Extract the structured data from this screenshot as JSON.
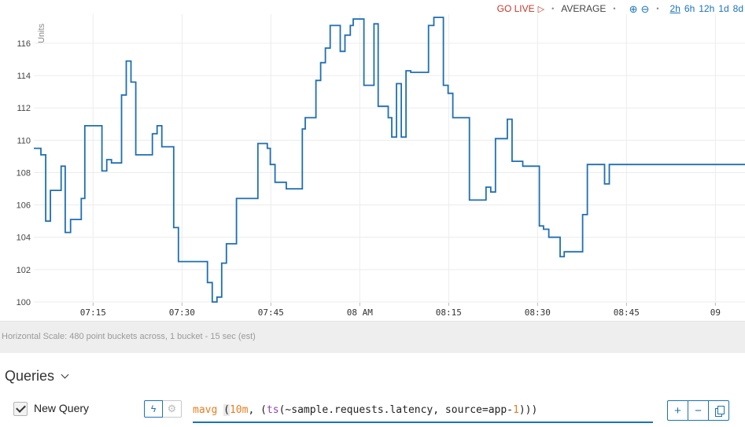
{
  "toolbar": {
    "go_live": "GO LIVE",
    "dot": "•",
    "average": "AVERAGE",
    "zoom_in_icon": "zoom-in-icon",
    "zoom_out_icon": "zoom-out-icon",
    "ranges": [
      "2h",
      "6h",
      "12h",
      "1d",
      "8d"
    ],
    "active_range": "2h"
  },
  "horizontal_scale": "Horizontal Scale: 480 point buckets across, 1 bucket - 15 sec (est)",
  "queries": {
    "title": "Queries",
    "items": [
      {
        "checked": true,
        "name": "New Query",
        "tokens": {
          "fn": "mavg",
          "open": "(",
          "num": "10m",
          "comma1": ", (",
          "ts": "ts",
          "args": "(~sample.requests.latency, source=app-",
          "one": "1",
          "close": ")))"
        }
      }
    ]
  },
  "colors": {
    "line": "#1f6fb2",
    "accent": "#1a73b8",
    "live": "#c0392b"
  },
  "chart_data": {
    "type": "line",
    "ylabel": "Units",
    "ylim": [
      99.95,
      117.8
    ],
    "yticks": [
      100,
      102,
      104,
      106,
      108,
      110,
      112,
      114,
      116
    ],
    "xlim_min": [
      425,
      545
    ],
    "xticks": [
      {
        "label": "07:15",
        "min": 435
      },
      {
        "label": "07:30",
        "min": 450
      },
      {
        "label": "07:45",
        "min": 465
      },
      {
        "label": "08 AM",
        "min": 480
      },
      {
        "label": "08:15",
        "min": 495
      },
      {
        "label": "08:30",
        "min": 510
      },
      {
        "label": "08:45",
        "min": 525
      },
      {
        "label": "09",
        "min": 540
      }
    ],
    "series": [
      {
        "step": true,
        "points": [
          [
            425.0,
            109.5
          ],
          [
            426.2,
            109.1
          ],
          [
            427.0,
            105.0
          ],
          [
            427.8,
            106.9
          ],
          [
            429.6,
            108.4
          ],
          [
            430.3,
            104.3
          ],
          [
            431.2,
            105.1
          ],
          [
            433.0,
            106.4
          ],
          [
            433.6,
            110.9
          ],
          [
            436.5,
            108.1
          ],
          [
            437.3,
            108.8
          ],
          [
            438.1,
            108.6
          ],
          [
            439.8,
            112.8
          ],
          [
            440.6,
            114.9
          ],
          [
            441.4,
            113.6
          ],
          [
            442.2,
            109.1
          ],
          [
            445.0,
            110.4
          ],
          [
            445.8,
            110.9
          ],
          [
            446.6,
            109.6
          ],
          [
            448.6,
            104.6
          ],
          [
            449.4,
            102.5
          ],
          [
            454.3,
            101.2
          ],
          [
            455.1,
            100.0
          ],
          [
            455.9,
            100.3
          ],
          [
            456.7,
            102.4
          ],
          [
            457.5,
            103.6
          ],
          [
            459.2,
            106.4
          ],
          [
            462.8,
            109.8
          ],
          [
            464.4,
            109.5
          ],
          [
            464.9,
            108.5
          ],
          [
            465.7,
            107.4
          ],
          [
            467.6,
            107.0
          ],
          [
            470.3,
            110.7
          ],
          [
            470.8,
            111.4
          ],
          [
            472.6,
            113.7
          ],
          [
            473.4,
            114.8
          ],
          [
            474.2,
            115.7
          ],
          [
            475.0,
            117.1
          ],
          [
            476.7,
            115.5
          ],
          [
            477.5,
            116.5
          ],
          [
            478.4,
            117.1
          ],
          [
            478.9,
            117.5
          ],
          [
            480.7,
            113.4
          ],
          [
            482.4,
            117.2
          ],
          [
            483.1,
            112.1
          ],
          [
            484.8,
            111.4
          ],
          [
            485.4,
            110.2
          ],
          [
            486.2,
            113.5
          ],
          [
            487.0,
            110.2
          ],
          [
            487.8,
            114.3
          ],
          [
            488.6,
            114.2
          ],
          [
            491.6,
            117.1
          ],
          [
            492.5,
            117.6
          ],
          [
            494.1,
            113.4
          ],
          [
            494.9,
            112.9
          ],
          [
            495.7,
            111.4
          ],
          [
            498.5,
            106.3
          ],
          [
            501.3,
            107.1
          ],
          [
            502.1,
            106.8
          ],
          [
            502.9,
            110.1
          ],
          [
            504.9,
            111.3
          ],
          [
            505.7,
            108.7
          ],
          [
            507.5,
            108.4
          ],
          [
            510.3,
            104.7
          ],
          [
            511.0,
            104.5
          ],
          [
            511.9,
            104.0
          ],
          [
            513.8,
            102.8
          ],
          [
            514.5,
            103.1
          ],
          [
            517.6,
            105.4
          ],
          [
            518.4,
            108.5
          ],
          [
            521.3,
            107.3
          ],
          [
            522.1,
            108.5
          ]
        ],
        "end_min": 545
      }
    ]
  }
}
